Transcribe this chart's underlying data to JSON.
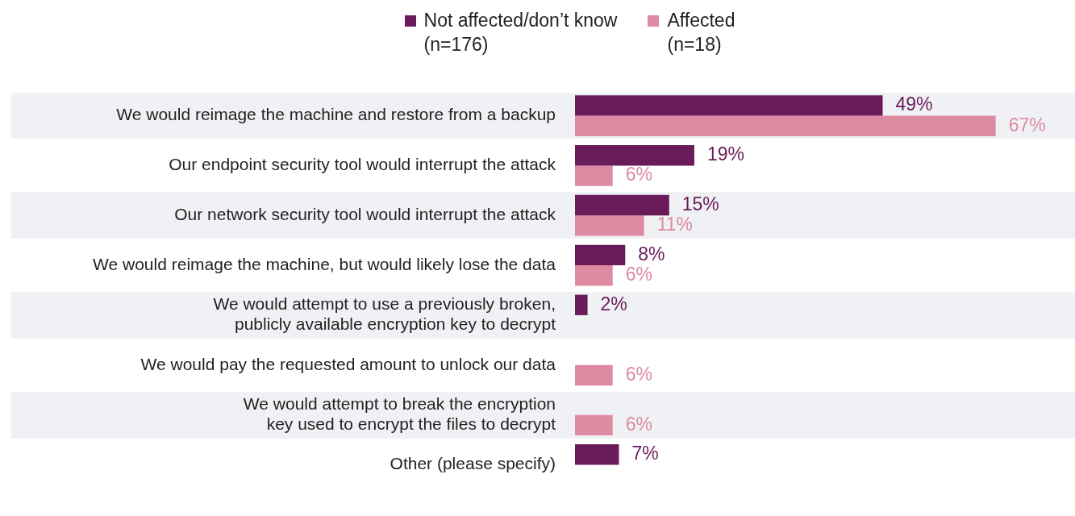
{
  "chart_data": {
    "type": "bar",
    "orientation": "horizontal",
    "categories": [
      "We would reimage the machine and restore from a backup",
      "Our endpoint security tool would interrupt the attack",
      "Our network security tool would interrupt the attack",
      "We would reimage the machine, but would likely lose the data",
      "We would attempt to use a previously broken,\npublicly available encryption key to decrypt",
      "We would pay the requested amount to unlock our data",
      "We would attempt to break the encryption\nkey used to encrypt the files to decrypt",
      "Other (please specify)"
    ],
    "series": [
      {
        "name": "Not affected/don’t know\n(n=176)",
        "color": "#6a1b5a",
        "values": [
          49,
          19,
          15,
          8,
          2,
          null,
          null,
          7
        ],
        "value_labels": [
          "49%",
          "19%",
          "15%",
          "8%",
          "2%",
          null,
          null,
          "7%"
        ]
      },
      {
        "name": "Affected\n(n=18)",
        "color": "#de8aa3",
        "values": [
          67,
          6,
          11,
          6,
          null,
          6,
          6,
          null
        ],
        "value_labels": [
          "67%",
          "6%",
          "11%",
          "6%",
          null,
          "6%",
          "6%",
          null
        ]
      }
    ],
    "tick_labels": "y",
    "legend": "top"
  }
}
